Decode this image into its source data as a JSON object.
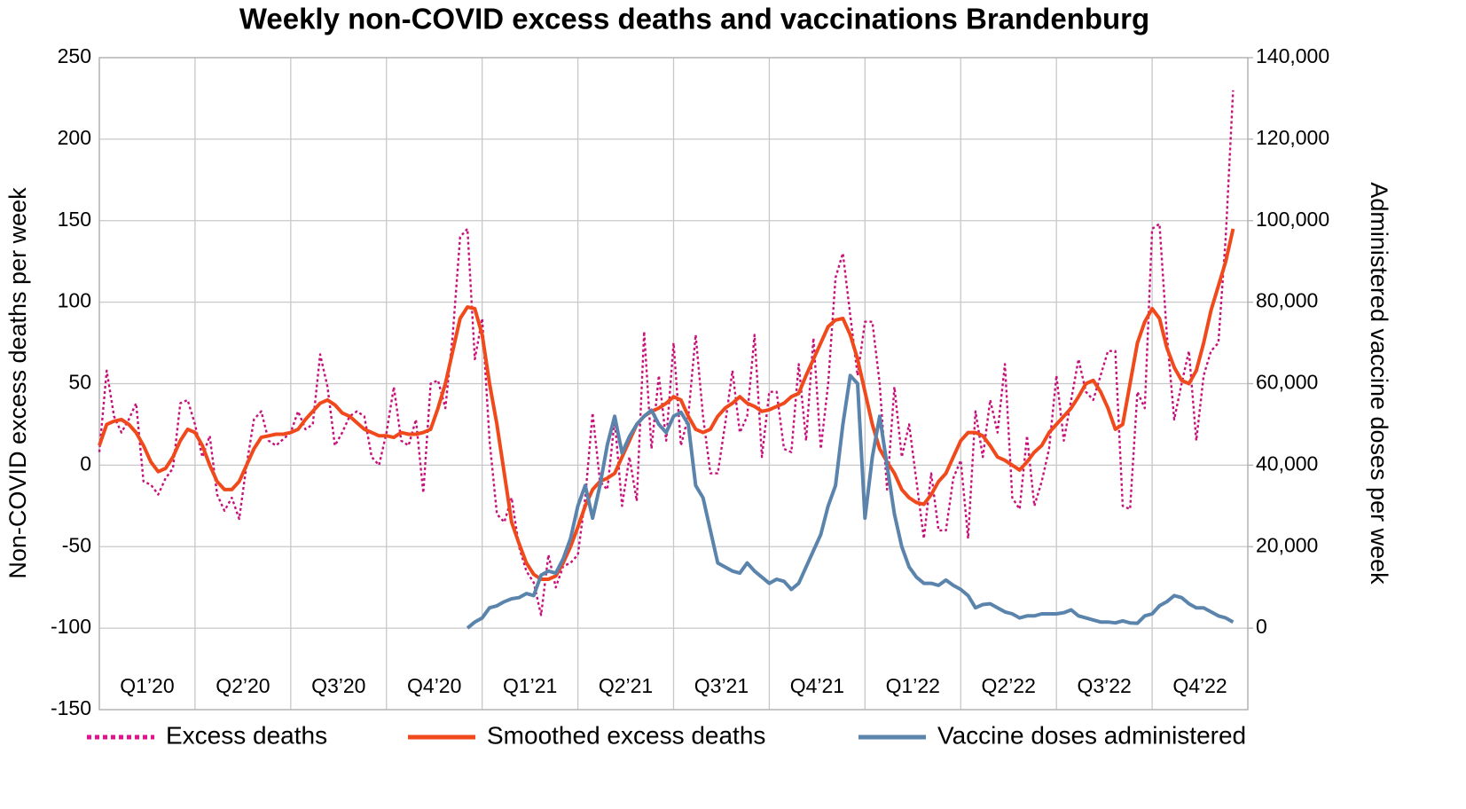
{
  "chart_data": {
    "type": "line",
    "title": "Weekly non-COVID excess deaths and vaccinations Brandenburg",
    "y_label": "Non-COVID excess deaths per week",
    "y2_label": "Administered vaccine doses per week",
    "categories": [
      "Q1’20",
      "Q2’20",
      "Q3’20",
      "Q4’20",
      "Q1’21",
      "Q2’21",
      "Q3’21",
      "Q4’21",
      "Q1’22",
      "Q2’22",
      "Q3’22",
      "Q4’22"
    ],
    "x": [
      0,
      1,
      2,
      3,
      4,
      5,
      6,
      7,
      8,
      9,
      10,
      11,
      12,
      13,
      14,
      15,
      16,
      17,
      18,
      19,
      20,
      21,
      22,
      23,
      24,
      25,
      26,
      27,
      28,
      29,
      30,
      31,
      32,
      33,
      34,
      35,
      36,
      37,
      38,
      39,
      40,
      41,
      42,
      43,
      44,
      45,
      46,
      47,
      48,
      49,
      50,
      51,
      52,
      53,
      54,
      55,
      56,
      57,
      58,
      59,
      60,
      61,
      62,
      63,
      64,
      65,
      66,
      67,
      68,
      69,
      70,
      71,
      72,
      73,
      74,
      75,
      76,
      77,
      78,
      79,
      80,
      81,
      82,
      83,
      84,
      85,
      86,
      87,
      88,
      89,
      90,
      91,
      92,
      93,
      94,
      95,
      96,
      97,
      98,
      99,
      100,
      101,
      102,
      103,
      104,
      105,
      106,
      107,
      108,
      109,
      110,
      111,
      112,
      113,
      114,
      115,
      116,
      117,
      118,
      119,
      120,
      121,
      122,
      123,
      124,
      125,
      126,
      127,
      128,
      129,
      130,
      131,
      132,
      133,
      134,
      135,
      136,
      137,
      138,
      139,
      140,
      141,
      142,
      143,
      144,
      145,
      146,
      147,
      148,
      149,
      150,
      151,
      152,
      153,
      154
    ],
    "xlim": [
      0,
      156
    ],
    "xticks": [
      0,
      13,
      26,
      39,
      52,
      65,
      78,
      91,
      104,
      117,
      130,
      143,
      156
    ],
    "ylim": [
      -150,
      250
    ],
    "yticks": [
      -150,
      -100,
      -50,
      0,
      50,
      100,
      150,
      200,
      250
    ],
    "y2lim": [
      -20000,
      140000
    ],
    "y2ticks": [
      0,
      {
        "value": 20000,
        "label": "20,000"
      },
      {
        "value": 40000,
        "label": "40,000"
      },
      {
        "value": 60000,
        "label": "60,000"
      },
      {
        "value": 80000,
        "label": "80,000"
      },
      {
        "value": 100000,
        "label": "100,000"
      },
      {
        "value": 120000,
        "label": "120,000"
      },
      {
        "value": 140000,
        "label": "140,000"
      }
    ],
    "grid": true,
    "legend": "bottom",
    "series": [
      {
        "name": "Excess deaths",
        "color": "#c8107a",
        "line_style": "dotted",
        "values": [
          8,
          58,
          30,
          20,
          28,
          38,
          -10,
          -12,
          -18,
          -8,
          -2,
          38,
          40,
          25,
          5,
          18,
          -18,
          -28,
          -20,
          -33,
          0,
          28,
          33,
          15,
          12,
          16,
          20,
          33,
          22,
          25,
          68,
          48,
          12,
          20,
          30,
          33,
          30,
          5,
          0,
          20,
          48,
          15,
          12,
          28,
          -17,
          50,
          52,
          35,
          80,
          140,
          145,
          65,
          90,
          15,
          -30,
          -35,
          -20,
          -50,
          -65,
          -72,
          -92,
          -55,
          -75,
          -62,
          -60,
          -55,
          -20,
          32,
          -10,
          -15,
          28,
          -25,
          5,
          -22,
          82,
          10,
          55,
          15,
          75,
          12,
          30,
          80,
          30,
          -5,
          -5,
          25,
          58,
          20,
          30,
          80,
          5,
          45,
          45,
          10,
          8,
          62,
          15,
          78,
          10,
          50,
          115,
          130,
          92,
          55,
          88,
          88,
          50,
          -15,
          48,
          5,
          25,
          -10,
          -45,
          -5,
          -40,
          -40,
          -8,
          3,
          -45,
          33,
          5,
          40,
          20,
          62,
          -20,
          -27,
          18,
          -25,
          -10,
          10,
          55,
          15,
          40,
          65,
          45,
          40,
          55,
          70,
          70,
          -25,
          -27,
          45,
          35,
          145,
          148,
          80,
          28,
          50,
          70,
          15,
          55,
          70,
          75,
          140,
          230
        ]
      },
      {
        "name": "Smoothed excess deaths",
        "color": "#f04a1c",
        "line_style": "solid",
        "values": [
          12,
          25,
          27,
          28,
          25,
          20,
          12,
          2,
          -4,
          -2,
          5,
          15,
          22,
          20,
          12,
          0,
          -10,
          -15,
          -15,
          -10,
          0,
          10,
          17,
          18,
          19,
          19,
          20,
          22,
          28,
          33,
          38,
          40,
          37,
          32,
          30,
          26,
          22,
          20,
          18,
          18,
          17,
          20,
          19,
          19,
          20,
          22,
          35,
          50,
          70,
          90,
          97,
          96,
          80,
          50,
          25,
          -5,
          -35,
          -48,
          -60,
          -67,
          -70,
          -70,
          -68,
          -60,
          -50,
          -38,
          -25,
          -15,
          -10,
          -8,
          -5,
          5,
          15,
          25,
          30,
          33,
          35,
          38,
          42,
          40,
          30,
          22,
          20,
          22,
          30,
          35,
          38,
          42,
          38,
          36,
          33,
          34,
          36,
          38,
          42,
          44,
          55,
          65,
          75,
          85,
          89,
          90,
          80,
          65,
          45,
          25,
          10,
          2,
          -5,
          -15,
          -20,
          -23,
          -24,
          -18,
          -10,
          -5,
          5,
          15,
          20,
          20,
          18,
          12,
          5,
          3,
          0,
          -3,
          2,
          8,
          12,
          20,
          25,
          30,
          35,
          42,
          50,
          52,
          45,
          35,
          22,
          25,
          50,
          75,
          88,
          96,
          90,
          72,
          60,
          52,
          50,
          58,
          75,
          95,
          110,
          125,
          145
        ]
      },
      {
        "name": "Vaccine doses administered",
        "color": "#5b84ad",
        "line_style": "solid",
        "axis": "y2",
        "values": [
          null,
          null,
          null,
          null,
          null,
          null,
          null,
          null,
          null,
          null,
          null,
          null,
          null,
          null,
          null,
          null,
          null,
          null,
          null,
          null,
          null,
          null,
          null,
          null,
          null,
          null,
          null,
          null,
          null,
          null,
          null,
          null,
          null,
          null,
          null,
          null,
          null,
          null,
          null,
          null,
          null,
          null,
          null,
          null,
          null,
          null,
          null,
          null,
          null,
          null,
          0,
          1500,
          2500,
          5000,
          5500,
          6500,
          7200,
          7500,
          8500,
          8000,
          13000,
          14000,
          13500,
          17000,
          22000,
          30000,
          35000,
          27000,
          35000,
          45000,
          52000,
          43000,
          47000,
          50000,
          52000,
          53500,
          50000,
          48000,
          52000,
          53000,
          50000,
          35000,
          32000,
          24000,
          16000,
          15000,
          14000,
          13500,
          16000,
          14000,
          12500,
          11000,
          12000,
          11500,
          9500,
          11000,
          15000,
          19000,
          23000,
          30000,
          35000,
          50000,
          62000,
          60000,
          27000,
          42000,
          52000,
          40000,
          28000,
          20000,
          15000,
          12500,
          11000,
          11000,
          10500,
          11800,
          10500,
          9500,
          8000,
          5000,
          5800,
          6000,
          5000,
          4000,
          3500,
          2500,
          3000,
          3000,
          3500,
          3500,
          3500,
          3800,
          4500,
          3000,
          2500,
          2000,
          1500,
          1500,
          1300,
          1800,
          1300,
          1200,
          3000,
          3500,
          5500,
          6500,
          8000,
          7500,
          6000,
          5000,
          5000,
          4000,
          3000,
          2500,
          1500
        ]
      }
    ]
  }
}
